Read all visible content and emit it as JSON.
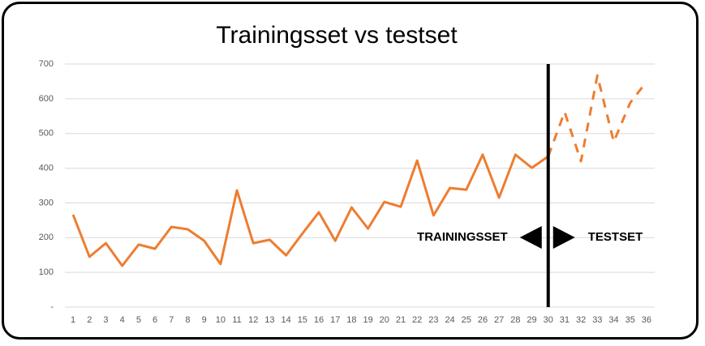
{
  "chart_data": {
    "type": "line",
    "title": "Trainingsset vs testset",
    "x": [
      1,
      2,
      3,
      4,
      5,
      6,
      7,
      8,
      9,
      10,
      11,
      12,
      13,
      14,
      15,
      16,
      17,
      18,
      19,
      20,
      21,
      22,
      23,
      24,
      25,
      26,
      27,
      28,
      29,
      30,
      31,
      32,
      33,
      34,
      35,
      36
    ],
    "xlim": [
      0.5,
      36.5
    ],
    "series": [
      {
        "color": "#ed7d31",
        "dashed": false,
        "values": [
          266,
          145,
          184,
          119,
          180,
          168,
          231,
          224,
          191,
          124,
          336,
          184,
          194,
          149,
          212,
          273,
          191,
          287,
          226,
          303,
          289,
          422,
          264,
          343,
          338,
          439,
          315,
          439,
          401,
          434,
          null,
          null,
          null,
          null,
          null,
          null
        ]
      },
      {
        "color": "#ed7d31",
        "dashed": true,
        "values": [
          null,
          null,
          null,
          null,
          null,
          null,
          null,
          null,
          null,
          null,
          null,
          null,
          null,
          null,
          null,
          null,
          null,
          null,
          null,
          null,
          null,
          null,
          null,
          null,
          null,
          null,
          null,
          null,
          null,
          434,
          562,
          420,
          667,
          476,
          588,
          649
        ]
      }
    ],
    "ylim": [
      0,
      700
    ],
    "yticks": [
      {
        "value": 0,
        "label": "-"
      },
      100,
      200,
      300,
      400,
      500,
      600,
      700
    ],
    "grid": true,
    "annotations": [
      "TRAININGSSET",
      "TESTSET"
    ]
  }
}
